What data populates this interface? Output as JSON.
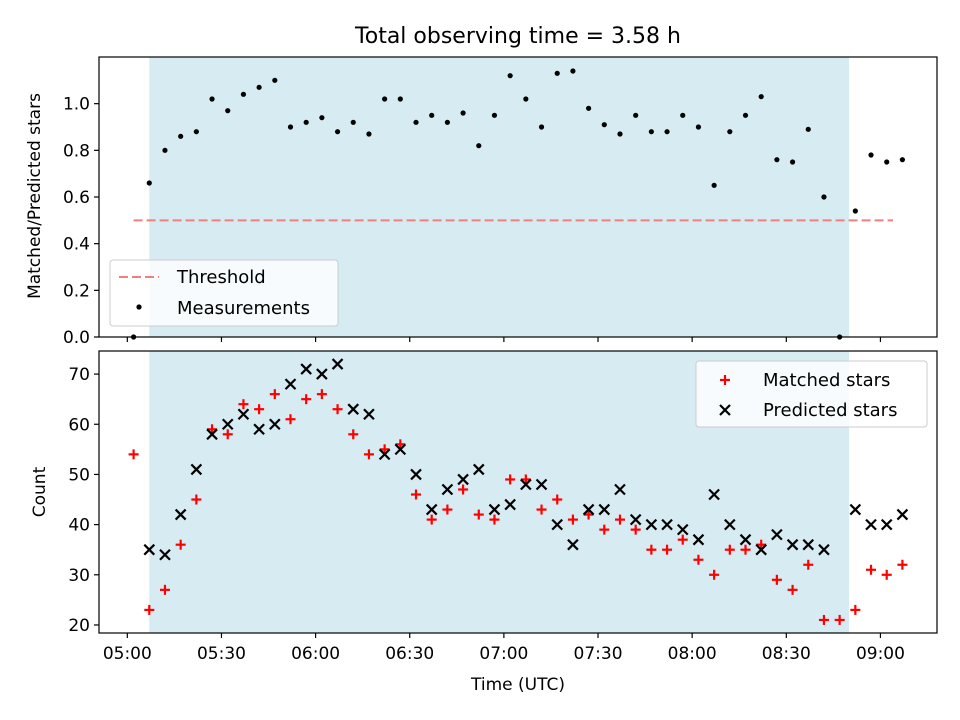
{
  "chart_data": [
    {
      "type": "scatter",
      "title": "Total observing time = 3.58 h",
      "ylabel": "Matched/Predicted stars",
      "xlabel": "",
      "ylim": [
        0,
        1.2
      ],
      "yticks": [
        "0.0",
        "0.2",
        "0.4",
        "0.6",
        "0.8",
        "1.0"
      ],
      "shaded_region": {
        "start": "05:07",
        "end": "08:50",
        "color": "#add8e6"
      },
      "threshold": {
        "name": "Threshold",
        "value": 0.5,
        "from": "05:02",
        "to": "09:04",
        "color": "#f08080"
      },
      "legend": {
        "placement": "lower-left"
      },
      "series": [
        {
          "name": "Measurements",
          "color": "#000000",
          "points": [
            [
              "05:02",
              0.0
            ],
            [
              "05:07",
              0.66
            ],
            [
              "05:12",
              0.8
            ],
            [
              "05:17",
              0.86
            ],
            [
              "05:22",
              0.88
            ],
            [
              "05:27",
              1.02
            ],
            [
              "05:32",
              0.97
            ],
            [
              "05:37",
              1.04
            ],
            [
              "05:42",
              1.07
            ],
            [
              "05:47",
              1.1
            ],
            [
              "05:52",
              0.9
            ],
            [
              "05:57",
              0.92
            ],
            [
              "06:02",
              0.94
            ],
            [
              "06:07",
              0.88
            ],
            [
              "06:12",
              0.92
            ],
            [
              "06:17",
              0.87
            ],
            [
              "06:22",
              1.02
            ],
            [
              "06:27",
              1.02
            ],
            [
              "06:32",
              0.92
            ],
            [
              "06:37",
              0.95
            ],
            [
              "06:42",
              0.92
            ],
            [
              "06:47",
              0.96
            ],
            [
              "06:52",
              0.82
            ],
            [
              "06:57",
              0.95
            ],
            [
              "07:02",
              1.12
            ],
            [
              "07:07",
              1.02
            ],
            [
              "07:12",
              0.9
            ],
            [
              "07:17",
              1.13
            ],
            [
              "07:22",
              1.14
            ],
            [
              "07:27",
              0.98
            ],
            [
              "07:32",
              0.91
            ],
            [
              "07:37",
              0.87
            ],
            [
              "07:42",
              0.95
            ],
            [
              "07:47",
              0.88
            ],
            [
              "07:52",
              0.88
            ],
            [
              "07:57",
              0.95
            ],
            [
              "08:02",
              0.9
            ],
            [
              "08:07",
              0.65
            ],
            [
              "08:12",
              0.88
            ],
            [
              "08:17",
              0.95
            ],
            [
              "08:22",
              1.03
            ],
            [
              "08:27",
              0.76
            ],
            [
              "08:32",
              0.75
            ],
            [
              "08:37",
              0.89
            ],
            [
              "08:42",
              0.6
            ],
            [
              "08:47",
              0.0
            ],
            [
              "08:52",
              0.54
            ],
            [
              "08:57",
              0.78
            ],
            [
              "09:02",
              0.75
            ],
            [
              "09:07",
              0.76
            ]
          ]
        }
      ]
    },
    {
      "type": "scatter",
      "title": "",
      "xlabel": "Time (UTC)",
      "ylabel": "Count",
      "ylim": [
        18.4,
        74.6
      ],
      "yticks": [
        "20",
        "30",
        "40",
        "50",
        "60",
        "70"
      ],
      "xticks": [
        "05:00",
        "05:30",
        "06:00",
        "06:30",
        "07:00",
        "07:30",
        "08:00",
        "08:30",
        "09:00"
      ],
      "shaded_region": {
        "start": "05:07",
        "end": "08:50",
        "color": "#add8e6"
      },
      "legend": {
        "placement": "top-right"
      },
      "series": [
        {
          "name": "Matched stars",
          "marker": "plus",
          "color": "#ff0000",
          "points": [
            [
              "05:02",
              54
            ],
            [
              "05:07",
              23
            ],
            [
              "05:12",
              27
            ],
            [
              "05:17",
              36
            ],
            [
              "05:22",
              45
            ],
            [
              "05:27",
              59
            ],
            [
              "05:32",
              58
            ],
            [
              "05:37",
              64
            ],
            [
              "05:42",
              63
            ],
            [
              "05:47",
              66
            ],
            [
              "05:52",
              61
            ],
            [
              "05:57",
              65
            ],
            [
              "06:02",
              66
            ],
            [
              "06:07",
              63
            ],
            [
              "06:12",
              58
            ],
            [
              "06:17",
              54
            ],
            [
              "06:22",
              55
            ],
            [
              "06:27",
              56
            ],
            [
              "06:32",
              46
            ],
            [
              "06:37",
              41
            ],
            [
              "06:42",
              43
            ],
            [
              "06:47",
              47
            ],
            [
              "06:52",
              42
            ],
            [
              "06:57",
              41
            ],
            [
              "07:02",
              49
            ],
            [
              "07:07",
              49
            ],
            [
              "07:12",
              43
            ],
            [
              "07:17",
              45
            ],
            [
              "07:22",
              41
            ],
            [
              "07:27",
              42
            ],
            [
              "07:32",
              39
            ],
            [
              "07:37",
              41
            ],
            [
              "07:42",
              39
            ],
            [
              "07:47",
              35
            ],
            [
              "07:52",
              35
            ],
            [
              "07:57",
              37
            ],
            [
              "08:02",
              33
            ],
            [
              "08:07",
              30
            ],
            [
              "08:12",
              35
            ],
            [
              "08:17",
              35
            ],
            [
              "08:22",
              36
            ],
            [
              "08:27",
              29
            ],
            [
              "08:32",
              27
            ],
            [
              "08:37",
              32
            ],
            [
              "08:42",
              21
            ],
            [
              "08:47",
              21
            ],
            [
              "08:52",
              23
            ],
            [
              "08:57",
              31
            ],
            [
              "09:02",
              30
            ],
            [
              "09:07",
              32
            ]
          ]
        },
        {
          "name": "Predicted stars",
          "marker": "x",
          "color": "#000000",
          "points": [
            [
              "05:07",
              35
            ],
            [
              "05:12",
              34
            ],
            [
              "05:17",
              42
            ],
            [
              "05:22",
              51
            ],
            [
              "05:27",
              58
            ],
            [
              "05:32",
              60
            ],
            [
              "05:37",
              62
            ],
            [
              "05:42",
              59
            ],
            [
              "05:47",
              60
            ],
            [
              "05:52",
              68
            ],
            [
              "05:57",
              71
            ],
            [
              "06:02",
              70
            ],
            [
              "06:07",
              72
            ],
            [
              "06:12",
              63
            ],
            [
              "06:17",
              62
            ],
            [
              "06:22",
              54
            ],
            [
              "06:27",
              55
            ],
            [
              "06:32",
              50
            ],
            [
              "06:37",
              43
            ],
            [
              "06:42",
              47
            ],
            [
              "06:47",
              49
            ],
            [
              "06:52",
              51
            ],
            [
              "06:57",
              43
            ],
            [
              "07:02",
              44
            ],
            [
              "07:07",
              48
            ],
            [
              "07:12",
              48
            ],
            [
              "07:17",
              40
            ],
            [
              "07:22",
              36
            ],
            [
              "07:27",
              43
            ],
            [
              "07:32",
              43
            ],
            [
              "07:37",
              47
            ],
            [
              "07:42",
              41
            ],
            [
              "07:47",
              40
            ],
            [
              "07:52",
              40
            ],
            [
              "07:57",
              39
            ],
            [
              "08:02",
              37
            ],
            [
              "08:07",
              46
            ],
            [
              "08:12",
              40
            ],
            [
              "08:17",
              37
            ],
            [
              "08:22",
              35
            ],
            [
              "08:27",
              38
            ],
            [
              "08:32",
              36
            ],
            [
              "08:37",
              36
            ],
            [
              "08:42",
              35
            ],
            [
              "08:52",
              43
            ],
            [
              "08:57",
              40
            ],
            [
              "09:02",
              40
            ],
            [
              "09:07",
              42
            ]
          ]
        }
      ]
    }
  ]
}
